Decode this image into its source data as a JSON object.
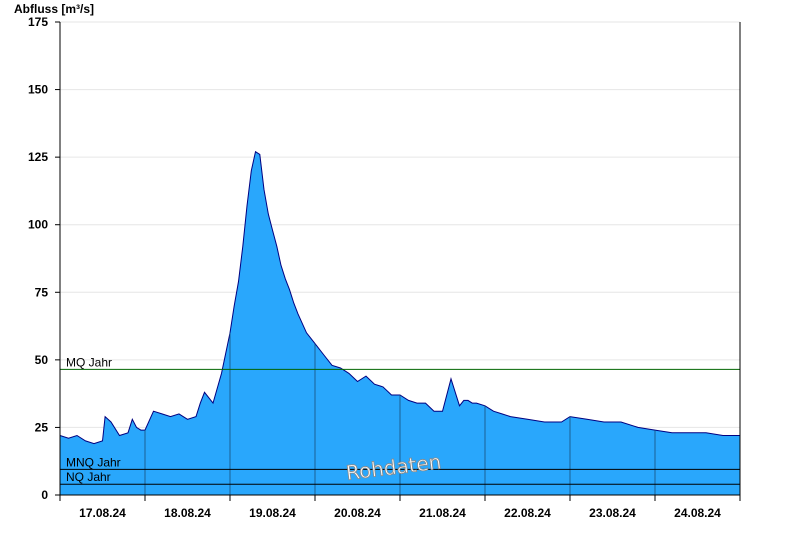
{
  "chart_data": {
    "type": "area",
    "ylabel": "Abfluss [m³/s]",
    "ylim": [
      0,
      175
    ],
    "yticks": [
      0,
      25,
      50,
      75,
      100,
      125,
      150,
      175
    ],
    "xlim": [
      0,
      8
    ],
    "xticks": [
      {
        "pos": 0.5,
        "label": "17.08.24"
      },
      {
        "pos": 1.5,
        "label": "18.08.24"
      },
      {
        "pos": 2.5,
        "label": "19.08.24"
      },
      {
        "pos": 3.5,
        "label": "20.08.24"
      },
      {
        "pos": 4.5,
        "label": "21.08.24"
      },
      {
        "pos": 5.5,
        "label": "22.08.24"
      },
      {
        "pos": 6.5,
        "label": "23.08.24"
      },
      {
        "pos": 7.5,
        "label": "24.08.24"
      }
    ],
    "grid": true,
    "fill_color": "#29a7fc",
    "line_color": "#000080",
    "reference_lines": [
      {
        "label": "MQ Jahr",
        "value": 46.5,
        "color": "#006400"
      },
      {
        "label": "MNQ Jahr",
        "value": 9.5,
        "color": "#000000"
      },
      {
        "label": "NQ Jahr",
        "value": 4.0,
        "color": "#000000"
      }
    ],
    "watermark": "Rohdaten",
    "x": [
      0,
      0.1,
      0.2,
      0.3,
      0.4,
      0.5,
      0.53,
      0.6,
      0.7,
      0.8,
      0.85,
      0.9,
      0.95,
      1.0,
      1.1,
      1.2,
      1.3,
      1.4,
      1.5,
      1.6,
      1.65,
      1.7,
      1.8,
      1.9,
      2.0,
      2.05,
      2.1,
      2.15,
      2.2,
      2.25,
      2.3,
      2.35,
      2.4,
      2.45,
      2.5,
      2.55,
      2.6,
      2.65,
      2.7,
      2.75,
      2.8,
      2.9,
      3.0,
      3.1,
      3.2,
      3.3,
      3.4,
      3.5,
      3.6,
      3.7,
      3.8,
      3.9,
      4.0,
      4.1,
      4.2,
      4.3,
      4.4,
      4.5,
      4.6,
      4.7,
      4.75,
      4.8,
      4.85,
      4.9,
      5.0,
      5.1,
      5.2,
      5.3,
      5.5,
      5.7,
      5.9,
      6.0,
      6.2,
      6.4,
      6.6,
      6.8,
      7.0,
      7.2,
      7.4,
      7.6,
      7.8,
      8.0
    ],
    "values": [
      22,
      21,
      22,
      20,
      19,
      20,
      29,
      27,
      22,
      23,
      28,
      25,
      24,
      24,
      31,
      30,
      29,
      30,
      28,
      29,
      34,
      38,
      34,
      45,
      60,
      70,
      79,
      92,
      107,
      120,
      127,
      126,
      113,
      104,
      98,
      92,
      85,
      80,
      76,
      71,
      67,
      60,
      56,
      52,
      48,
      47,
      45,
      42,
      44,
      41,
      40,
      37,
      37,
      35,
      34,
      34,
      31,
      31,
      43,
      33,
      35,
      35,
      34,
      34,
      33,
      31,
      30,
      29,
      28,
      27,
      27,
      29,
      28,
      27,
      27,
      25,
      24,
      23,
      23,
      23,
      22,
      22
    ]
  }
}
